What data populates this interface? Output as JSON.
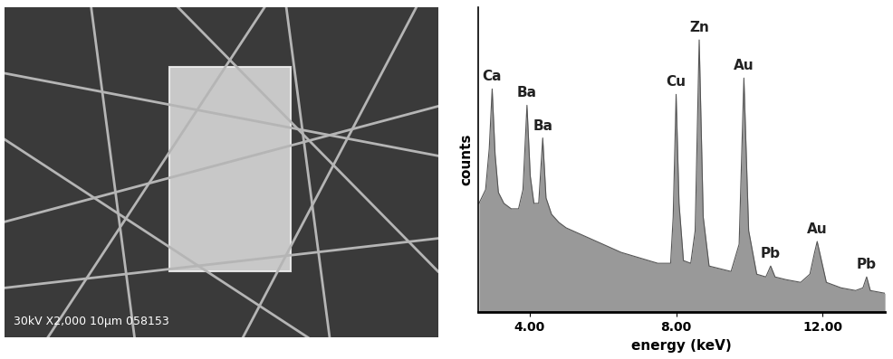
{
  "micrograph": {
    "caption": "30kV X2,000 10μm 058153"
  },
  "chart_data": {
    "type": "area",
    "xlabel": "energy (keV)",
    "ylabel": "counts",
    "x": [
      2.62,
      2.8,
      2.9,
      2.98,
      3.06,
      3.15,
      3.3,
      3.5,
      3.7,
      3.82,
      3.93,
      4.02,
      4.12,
      4.25,
      4.36,
      4.45,
      4.6,
      4.8,
      5.0,
      5.5,
      6.0,
      6.5,
      7.0,
      7.5,
      7.85,
      7.92,
      8.0,
      8.08,
      8.2,
      8.4,
      8.52,
      8.63,
      8.74,
      8.9,
      9.2,
      9.5,
      9.72,
      9.85,
      9.98,
      10.2,
      10.45,
      10.58,
      10.7,
      11.0,
      11.4,
      11.65,
      11.78,
      11.85,
      11.95,
      12.1,
      12.5,
      12.9,
      13.1,
      13.2,
      13.3,
      13.7
    ],
    "values": [
      40,
      45,
      60,
      82,
      58,
      44,
      40,
      38,
      38,
      45,
      76,
      50,
      40,
      40,
      64,
      42,
      36,
      33,
      31,
      28,
      25,
      22,
      20,
      18,
      18,
      35,
      80,
      40,
      19,
      18,
      30,
      100,
      35,
      17,
      16,
      15,
      25,
      86,
      30,
      14,
      13,
      17,
      13,
      12,
      11,
      14,
      22,
      26,
      20,
      11,
      9,
      8,
      9,
      13,
      8,
      7
    ],
    "color": "#999999",
    "peaks": [
      {
        "label": "Ca",
        "energy": 2.98,
        "counts": 82
      },
      {
        "label": "Ba",
        "energy": 3.93,
        "counts": 76
      },
      {
        "label": "Ba",
        "energy": 4.36,
        "counts": 64
      },
      {
        "label": "Cu",
        "energy": 8.0,
        "counts": 80
      },
      {
        "label": "Zn",
        "energy": 8.63,
        "counts": 100
      },
      {
        "label": "Au",
        "energy": 9.85,
        "counts": 86
      },
      {
        "label": "Pb",
        "energy": 10.58,
        "counts": 17
      },
      {
        "label": "Au",
        "energy": 11.85,
        "counts": 26
      },
      {
        "label": "Pb",
        "energy": 13.2,
        "counts": 13
      }
    ],
    "xlim": [
      2.6,
      13.7
    ],
    "ylim": [
      0,
      112
    ],
    "xticks": [
      {
        "value": 4,
        "label": "4.00"
      },
      {
        "value": 8,
        "label": "8.00"
      },
      {
        "value": 12,
        "label": "12.00"
      }
    ],
    "tick_labels": "x",
    "grid": false
  }
}
